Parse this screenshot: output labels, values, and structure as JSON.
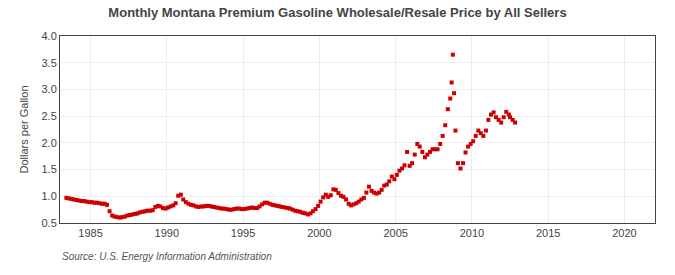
{
  "chart_data": {
    "type": "scatter",
    "title": "Monthly Montana Premium Gasoline Wholesale/Resale Price by All Sellers",
    "y_label": "Dollars per Gallon",
    "source": "Source: U.S. Energy Information Administration",
    "color": "#cc0000",
    "marker": "square",
    "grid": true,
    "xlim": [
      1983.0,
      2022.0
    ],
    "ylim": [
      0.5,
      4.0
    ],
    "xticks": [
      1985,
      1990,
      1995,
      2000,
      2005,
      2010,
      2015,
      2020
    ],
    "yticks": [
      0.5,
      {
        "value": 1.0,
        "label": "1.0"
      },
      1.5,
      {
        "value": 2.0,
        "label": "2.0"
      },
      2.5,
      {
        "value": 3.0,
        "label": "3.0"
      },
      3.5,
      {
        "value": 4.0,
        "label": "4.0"
      }
    ],
    "x": [
      1983.42,
      1983.58,
      1983.75,
      1983.92,
      1984.08,
      1984.25,
      1984.42,
      1984.58,
      1984.75,
      1984.92,
      1985.08,
      1985.25,
      1985.42,
      1985.58,
      1985.75,
      1985.92,
      1986.08,
      1986.25,
      1986.42,
      1986.58,
      1986.75,
      1986.92,
      1987.08,
      1987.25,
      1987.42,
      1987.58,
      1987.75,
      1987.92,
      1988.08,
      1988.25,
      1988.42,
      1988.58,
      1988.75,
      1988.92,
      1989.08,
      1989.25,
      1989.42,
      1989.58,
      1989.75,
      1989.92,
      1990.08,
      1990.25,
      1990.42,
      1990.58,
      1990.75,
      1990.92,
      1991.08,
      1991.25,
      1991.42,
      1991.58,
      1991.75,
      1991.92,
      1992.08,
      1992.25,
      1992.42,
      1992.58,
      1992.75,
      1992.92,
      1993.08,
      1993.25,
      1993.42,
      1993.58,
      1993.75,
      1993.92,
      1994.08,
      1994.25,
      1994.42,
      1994.58,
      1994.75,
      1994.92,
      1995.08,
      1995.25,
      1995.42,
      1995.58,
      1995.75,
      1995.92,
      1996.08,
      1996.25,
      1996.42,
      1996.58,
      1996.75,
      1996.92,
      1997.08,
      1997.25,
      1997.42,
      1997.58,
      1997.75,
      1997.92,
      1998.08,
      1998.25,
      1998.42,
      1998.58,
      1998.75,
      1998.92,
      1999.08,
      1999.25,
      1999.42,
      1999.58,
      1999.75,
      1999.92,
      2000.08,
      2000.25,
      2000.42,
      2000.58,
      2000.75,
      2000.92,
      2001.08,
      2001.25,
      2001.42,
      2001.58,
      2001.75,
      2001.92,
      2002.08,
      2002.25,
      2002.42,
      2002.58,
      2002.75,
      2002.92,
      2003.08,
      2003.25,
      2003.42,
      2003.58,
      2003.75,
      2003.92,
      2004.08,
      2004.25,
      2004.42,
      2004.58,
      2004.75,
      2004.92,
      2005.08,
      2005.25,
      2005.42,
      2005.58,
      2005.75,
      2005.92,
      2006.08,
      2006.25,
      2006.42,
      2006.58,
      2006.75,
      2006.92,
      2007.08,
      2007.25,
      2007.42,
      2007.58,
      2007.75,
      2007.92,
      2008.08,
      2008.25,
      2008.42,
      2008.58,
      2008.67,
      2008.75,
      2008.83,
      2008.92,
      2009.08,
      2009.25,
      2009.42,
      2009.58,
      2009.75,
      2009.92,
      2010.08,
      2010.25,
      2010.42,
      2010.58,
      2010.75,
      2010.92,
      2011.08,
      2011.25,
      2011.42,
      2011.58,
      2011.75,
      2011.92,
      2012.08,
      2012.25,
      2012.42,
      2012.5,
      2012.67,
      2012.83
    ],
    "values": [
      0.97,
      0.96,
      0.95,
      0.94,
      0.93,
      0.92,
      0.91,
      0.91,
      0.9,
      0.89,
      0.89,
      0.88,
      0.88,
      0.87,
      0.86,
      0.86,
      0.84,
      0.72,
      0.64,
      0.62,
      0.61,
      0.6,
      0.61,
      0.62,
      0.64,
      0.65,
      0.66,
      0.67,
      0.68,
      0.7,
      0.71,
      0.72,
      0.73,
      0.73,
      0.74,
      0.8,
      0.82,
      0.81,
      0.78,
      0.77,
      0.79,
      0.81,
      0.83,
      0.87,
      1.01,
      1.03,
      0.94,
      0.89,
      0.86,
      0.84,
      0.83,
      0.81,
      0.8,
      0.81,
      0.81,
      0.82,
      0.82,
      0.81,
      0.8,
      0.79,
      0.78,
      0.77,
      0.77,
      0.76,
      0.75,
      0.75,
      0.76,
      0.77,
      0.77,
      0.76,
      0.76,
      0.77,
      0.78,
      0.79,
      0.78,
      0.78,
      0.81,
      0.85,
      0.88,
      0.88,
      0.86,
      0.84,
      0.83,
      0.82,
      0.81,
      0.8,
      0.79,
      0.78,
      0.77,
      0.75,
      0.73,
      0.72,
      0.71,
      0.69,
      0.68,
      0.66,
      0.68,
      0.72,
      0.76,
      0.82,
      0.9,
      0.98,
      1.03,
      0.99,
      1.02,
      1.13,
      1.12,
      1.06,
      1.01,
      0.99,
      0.94,
      0.86,
      0.83,
      0.85,
      0.87,
      0.9,
      0.94,
      0.97,
      1.07,
      1.18,
      1.1,
      1.07,
      1.05,
      1.07,
      1.12,
      1.2,
      1.22,
      1.28,
      1.37,
      1.32,
      1.4,
      1.48,
      1.52,
      1.58,
      1.83,
      1.57,
      1.62,
      1.78,
      1.98,
      1.93,
      1.83,
      1.73,
      1.78,
      1.83,
      1.88,
      1.88,
      1.88,
      1.98,
      2.13,
      2.33,
      2.63,
      2.83,
      3.13,
      3.65,
      2.93,
      2.23,
      1.62,
      1.52,
      1.62,
      1.82,
      1.93,
      1.98,
      2.03,
      2.13,
      2.23,
      2.18,
      2.13,
      2.23,
      2.43,
      2.53,
      2.57,
      2.48,
      2.43,
      2.38,
      2.48,
      2.58,
      2.53,
      2.48,
      2.43,
      2.38
    ]
  }
}
